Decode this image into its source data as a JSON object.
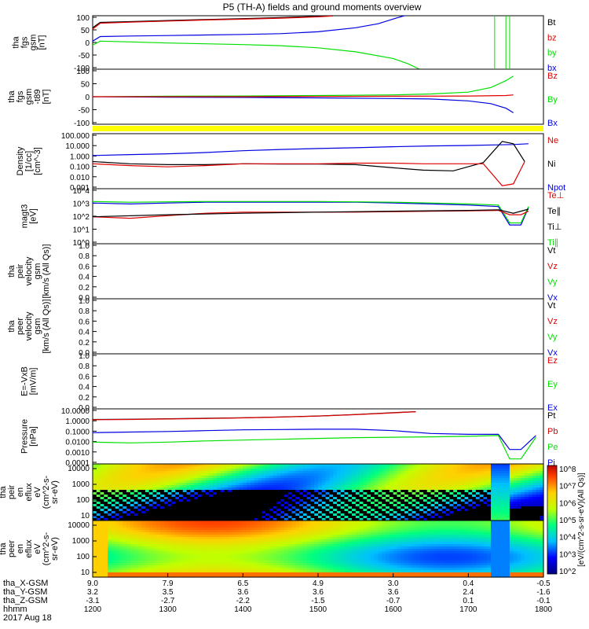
{
  "title": "P5 (TH-A) fields and ground moments overview",
  "colors": {
    "black": "#000000",
    "red": "#e00000",
    "green": "#00e000",
    "blue": "#0000e0",
    "yellow": "#ffff00"
  },
  "chart_data": {
    "type": "line",
    "x_axis": {
      "range": [
        1200,
        1800
      ],
      "rows": [
        {
          "label": "tha_X-GSM",
          "values": [
            "9.0",
            "7.9",
            "6.5",
            "4.9",
            "3.0",
            "0.4",
            "-0.5"
          ]
        },
        {
          "label": "tha_Y-GSM",
          "values": [
            "3.2",
            "3.5",
            "3.6",
            "3.6",
            "3.6",
            "2.4",
            "-1.6"
          ]
        },
        {
          "label": "tha_Z-GSM",
          "values": [
            "-3.1",
            "-2.7",
            "-2.2",
            "-1.5",
            "-0.7",
            "0.1",
            "-0.1"
          ]
        },
        {
          "label": "hhmm",
          "values": [
            "1200",
            "1300",
            "1400",
            "1500",
            "1600",
            "1700",
            "1800"
          ]
        }
      ],
      "date": "2017 Aug 18"
    },
    "panels": [
      {
        "id": "fgs",
        "ylabel": [
          "tha",
          "fgs",
          "gsm",
          "[nT]"
        ],
        "scale": "linear",
        "yticks": [
          "100",
          "50",
          "0",
          "-50",
          "-100"
        ],
        "ylim": [
          -100,
          100
        ],
        "legend": [
          {
            "text": "Bt",
            "color": "#000000"
          },
          {
            "text": "bz",
            "color": "#e00000"
          },
          {
            "text": "by",
            "color": "#00e000"
          },
          {
            "text": "bx",
            "color": "#0000e0"
          }
        ],
        "series": [
          {
            "color": "#000000",
            "x": [
              1200,
              1210,
              1250,
              1300,
              1350,
              1400,
              1450,
              1500,
              1520
            ],
            "y": [
              55,
              75,
              78,
              82,
              86,
              89,
              93,
              98,
              100
            ]
          },
          {
            "color": "#e00000",
            "x": [
              1200,
              1210,
              1250,
              1300,
              1350,
              1400,
              1450,
              1500,
              1520
            ],
            "y": [
              50,
              72,
              76,
              80,
              84,
              87,
              91,
              96,
              99
            ]
          },
          {
            "color": "#0000e0",
            "x": [
              1200,
              1210,
              1250,
              1300,
              1350,
              1400,
              1450,
              1500,
              1550,
              1580,
              1605,
              1615
            ],
            "y": [
              5,
              22,
              24,
              26,
              28,
              30,
              33,
              40,
              55,
              70,
              92,
              100
            ]
          },
          {
            "color": "#00e000",
            "x": [
              1200,
              1210,
              1250,
              1300,
              1350,
              1400,
              1450,
              1500,
              1550,
              1600,
              1620,
              1635
            ],
            "y": [
              -10,
              5,
              2,
              -2,
              -5,
              -8,
              -12,
              -20,
              -35,
              -60,
              -80,
              -100
            ]
          }
        ]
      },
      {
        "id": "fgs-t89",
        "ylabel": [
          "tha",
          "fgs",
          "gsm",
          "-t89",
          "[nT]"
        ],
        "scale": "linear",
        "yticks": [
          "100",
          "50",
          "0",
          "-50",
          "-100"
        ],
        "ylim": [
          -120,
          120
        ],
        "legend": [
          {
            "text": "Bz",
            "color": "#e00000"
          },
          {
            "text": "By",
            "color": "#00e000"
          },
          {
            "text": "Bx",
            "color": "#0000e0"
          }
        ],
        "series": [
          {
            "color": "#00e000",
            "x": [
              1200,
              1300,
              1400,
              1500,
              1600,
              1650,
              1700,
              1730,
              1750,
              1760
            ],
            "y": [
              0,
              2,
              3,
              5,
              8,
              12,
              20,
              40,
              70,
              90
            ]
          },
          {
            "color": "#0000e0",
            "x": [
              1200,
              1300,
              1400,
              1500,
              1600,
              1650,
              1700,
              1730,
              1750,
              1760
            ],
            "y": [
              0,
              -2,
              -3,
              -5,
              -8,
              -10,
              -18,
              -30,
              -50,
              -70
            ]
          },
          {
            "color": "#e00000",
            "x": [
              1200,
              1300,
              1400,
              1500,
              1600,
              1700,
              1750,
              1760
            ],
            "y": [
              0,
              0,
              0,
              1,
              2,
              3,
              5,
              8
            ]
          }
        ]
      },
      {
        "id": "density",
        "ylabel": [
          "Density",
          "[1/cc]",
          "[cm^-3]"
        ],
        "scale": "log",
        "yticks": [
          "100.000",
          "10.000",
          "1.000",
          "0.100",
          "0.010",
          "0.001"
        ],
        "ylim": [
          0.001,
          300
        ],
        "legend": [
          {
            "text": "Ne",
            "color": "#e00000"
          },
          {
            "text": "Ni",
            "color": "#000000"
          },
          {
            "text": "Npot",
            "color": "#0000e0"
          }
        ],
        "series": [
          {
            "color": "#0000e0",
            "x": [
              1200,
              1250,
              1300,
              1350,
              1400,
              1450,
              1500,
              1550,
              1600,
              1650,
              1700,
              1760,
              1780
            ],
            "y": [
              2,
              2.5,
              3,
              4,
              6,
              8,
              10,
              12,
              15,
              18,
              20,
              25,
              30
            ]
          },
          {
            "color": "#000000",
            "x": [
              1200,
              1250,
              1300,
              1350,
              1400,
              1450,
              1500,
              1550,
              1600,
              1640,
              1680,
              1720,
              1745,
              1760,
              1775
            ],
            "y": [
              0.5,
              0.3,
              0.25,
              0.25,
              0.3,
              0.28,
              0.28,
              0.25,
              0.12,
              0.07,
              0.06,
              0.4,
              50,
              30,
              0.5
            ]
          },
          {
            "color": "#e00000",
            "x": [
              1200,
              1250,
              1300,
              1350,
              1400,
              1450,
              1500,
              1550,
              1600,
              1640,
              1680,
              1720,
              1745,
              1760,
              1775
            ],
            "y": [
              0.3,
              0.2,
              0.15,
              0.2,
              0.3,
              0.3,
              0.3,
              0.35,
              0.35,
              0.3,
              0.3,
              0.3,
              0.002,
              0.003,
              0.5
            ]
          }
        ]
      },
      {
        "id": "temperature",
        "ylabel": [
          "magt3",
          "[eV]"
        ],
        "scale": "log",
        "yticks": [
          "10^4",
          "10^3",
          "10^2",
          "10^1",
          "10^0"
        ],
        "ylim": [
          1,
          50000
        ],
        "legend": [
          {
            "text": "Te⊥",
            "color": "#e00000"
          },
          {
            "text": "Te∥",
            "color": "#000000"
          },
          {
            "text": "Ti⊥",
            "color": "#000000"
          },
          {
            "text": "Ti∥",
            "color": "#00e000"
          }
        ],
        "series": [
          {
            "color": "#0000e0",
            "x": [
              1200,
              1250,
              1300,
              1350,
              1400,
              1450,
              1500,
              1550,
              1600,
              1650,
              1700,
              1740,
              1755,
              1770,
              1780
            ],
            "y": [
              3000,
              2500,
              3000,
              3500,
              3500,
              3500,
              3500,
              3500,
              3000,
              2500,
              2000,
              1500,
              40,
              40,
              1200
            ]
          },
          {
            "color": "#00e000",
            "x": [
              1200,
              1250,
              1300,
              1350,
              1400,
              1450,
              1500,
              1550,
              1600,
              1650,
              1700,
              1740,
              1755,
              1770,
              1780
            ],
            "y": [
              4000,
              3500,
              3800,
              4000,
              4000,
              4000,
              4000,
              3800,
              3500,
              3000,
              2500,
              2000,
              60,
              60,
              1500
            ]
          },
          {
            "color": "#e00000",
            "x": [
              1200,
              1250,
              1300,
              1350,
              1400,
              1450,
              1500,
              1550,
              1600,
              1650,
              1700,
              1740,
              1755,
              1770,
              1780
            ],
            "y": [
              200,
              150,
              250,
              400,
              500,
              500,
              500,
              500,
              550,
              600,
              650,
              700,
              300,
              300,
              600
            ]
          },
          {
            "color": "#000000",
            "x": [
              1200,
              1300,
              1400,
              1500,
              1600,
              1700,
              1740,
              1760,
              1780
            ],
            "y": [
              200,
              300,
              400,
              500,
              600,
              700,
              800,
              400,
              900
            ]
          }
        ]
      },
      {
        "id": "peir",
        "ylabel": [
          "tha",
          "peir",
          "velocity",
          "gsm",
          "[km/s (All Qs)]"
        ],
        "scale": "linear",
        "yticks": [
          "1.0",
          "0.8",
          "0.6",
          "0.4",
          "0.2",
          "0.0"
        ],
        "ylim": [
          0,
          1
        ],
        "legend": [
          {
            "text": "Vt",
            "color": "#000000"
          },
          {
            "text": "Vz",
            "color": "#e00000"
          },
          {
            "text": "Vy",
            "color": "#00e000"
          },
          {
            "text": "Vx",
            "color": "#0000e0"
          }
        ],
        "series": []
      },
      {
        "id": "peer",
        "ylabel": [
          "tha",
          "peer",
          "velocity",
          "gsm",
          "[km/s (All Qs)]"
        ],
        "scale": "linear",
        "yticks": [
          "1.0",
          "0.8",
          "0.6",
          "0.4",
          "0.2",
          "0.0"
        ],
        "ylim": [
          0,
          1
        ],
        "legend": [
          {
            "text": "Vt",
            "color": "#000000"
          },
          {
            "text": "Vz",
            "color": "#e00000"
          },
          {
            "text": "Vy",
            "color": "#00e000"
          },
          {
            "text": "Vx",
            "color": "#0000e0"
          }
        ],
        "series": []
      },
      {
        "id": "efield",
        "ylabel": [
          "E=-VxB",
          "[mV/m]"
        ],
        "scale": "linear",
        "yticks": [
          "1.0",
          "0.8",
          "0.6",
          "0.4",
          "0.2",
          "0.0"
        ],
        "ylim": [
          0,
          1
        ],
        "legend": [
          {
            "text": "Ez",
            "color": "#e00000"
          },
          {
            "text": "Ey",
            "color": "#00e000"
          },
          {
            "text": "Ex",
            "color": "#0000e0"
          }
        ],
        "series": []
      },
      {
        "id": "pressure",
        "ylabel": [
          "Pressure",
          "[nPa]"
        ],
        "scale": "log",
        "yticks": [
          "10.0000",
          "1.0000",
          "0.1000",
          "0.0100",
          "0.0010",
          "0.0001"
        ],
        "ylim": [
          3e-05,
          20
        ],
        "legend": [
          {
            "text": "Pt",
            "color": "#000000"
          },
          {
            "text": "Pb",
            "color": "#e00000"
          },
          {
            "text": "Pe",
            "color": "#00e000"
          },
          {
            "text": "Pi",
            "color": "#0000e0"
          }
        ],
        "series": [
          {
            "color": "#000000",
            "x": [
              1200,
              1250,
              1300,
              1350,
              1400,
              1450,
              1500,
              1550,
              1600,
              1630
            ],
            "y": [
              1.5,
              1.6,
              1.8,
              2.0,
              2.3,
              2.8,
              3.5,
              5,
              8,
              10
            ]
          },
          {
            "color": "#e00000",
            "x": [
              1200,
              1250,
              1300,
              1350,
              1400,
              1450,
              1500,
              1550,
              1600,
              1630
            ],
            "y": [
              1.4,
              1.5,
              1.7,
              1.9,
              2.2,
              2.7,
              3.4,
              4.8,
              7.5,
              10
            ]
          },
          {
            "color": "#0000e0",
            "x": [
              1200,
              1250,
              1300,
              1350,
              1400,
              1450,
              1500,
              1550,
              1600,
              1650,
              1700,
              1740,
              1755,
              1770,
              1790
            ],
            "y": [
              0.06,
              0.07,
              0.08,
              0.1,
              0.12,
              0.13,
              0.14,
              0.14,
              0.1,
              0.05,
              0.04,
              0.04,
              0.001,
              0.001,
              0.03
            ]
          },
          {
            "color": "#00e000",
            "x": [
              1200,
              1250,
              1300,
              1350,
              1400,
              1450,
              1500,
              1550,
              1600,
              1650,
              1700,
              1740,
              1755,
              1770,
              1790
            ],
            "y": [
              0.006,
              0.005,
              0.006,
              0.008,
              0.01,
              0.012,
              0.015,
              0.018,
              0.02,
              0.022,
              0.025,
              0.03,
              0.0001,
              0.0001,
              0.02
            ]
          }
        ]
      },
      {
        "id": "peir-eflux",
        "type": "heatmap",
        "ylabel": [
          "tha",
          "peir",
          "en",
          "eflux",
          "eV",
          "(cm^2-s-",
          "sr-eV)"
        ],
        "yticks": [
          "10000",
          "1000",
          "100",
          "10"
        ],
        "scale": "log"
      },
      {
        "id": "peer-eflux",
        "type": "heatmap",
        "ylabel": [
          "tha",
          "peer",
          "en",
          "eflux",
          "eV",
          "(cm^2-s-",
          "sr-eV)"
        ],
        "yticks": [
          "10000",
          "1000",
          "100",
          "10"
        ],
        "scale": "log"
      }
    ],
    "colorbar": {
      "label": "[eV/(cm^2-s-sr-eV)(All Qs)]",
      "ticks": [
        "10^8",
        "10^7",
        "10^6",
        "10^5",
        "10^4",
        "10^3",
        "10^2"
      ]
    }
  }
}
